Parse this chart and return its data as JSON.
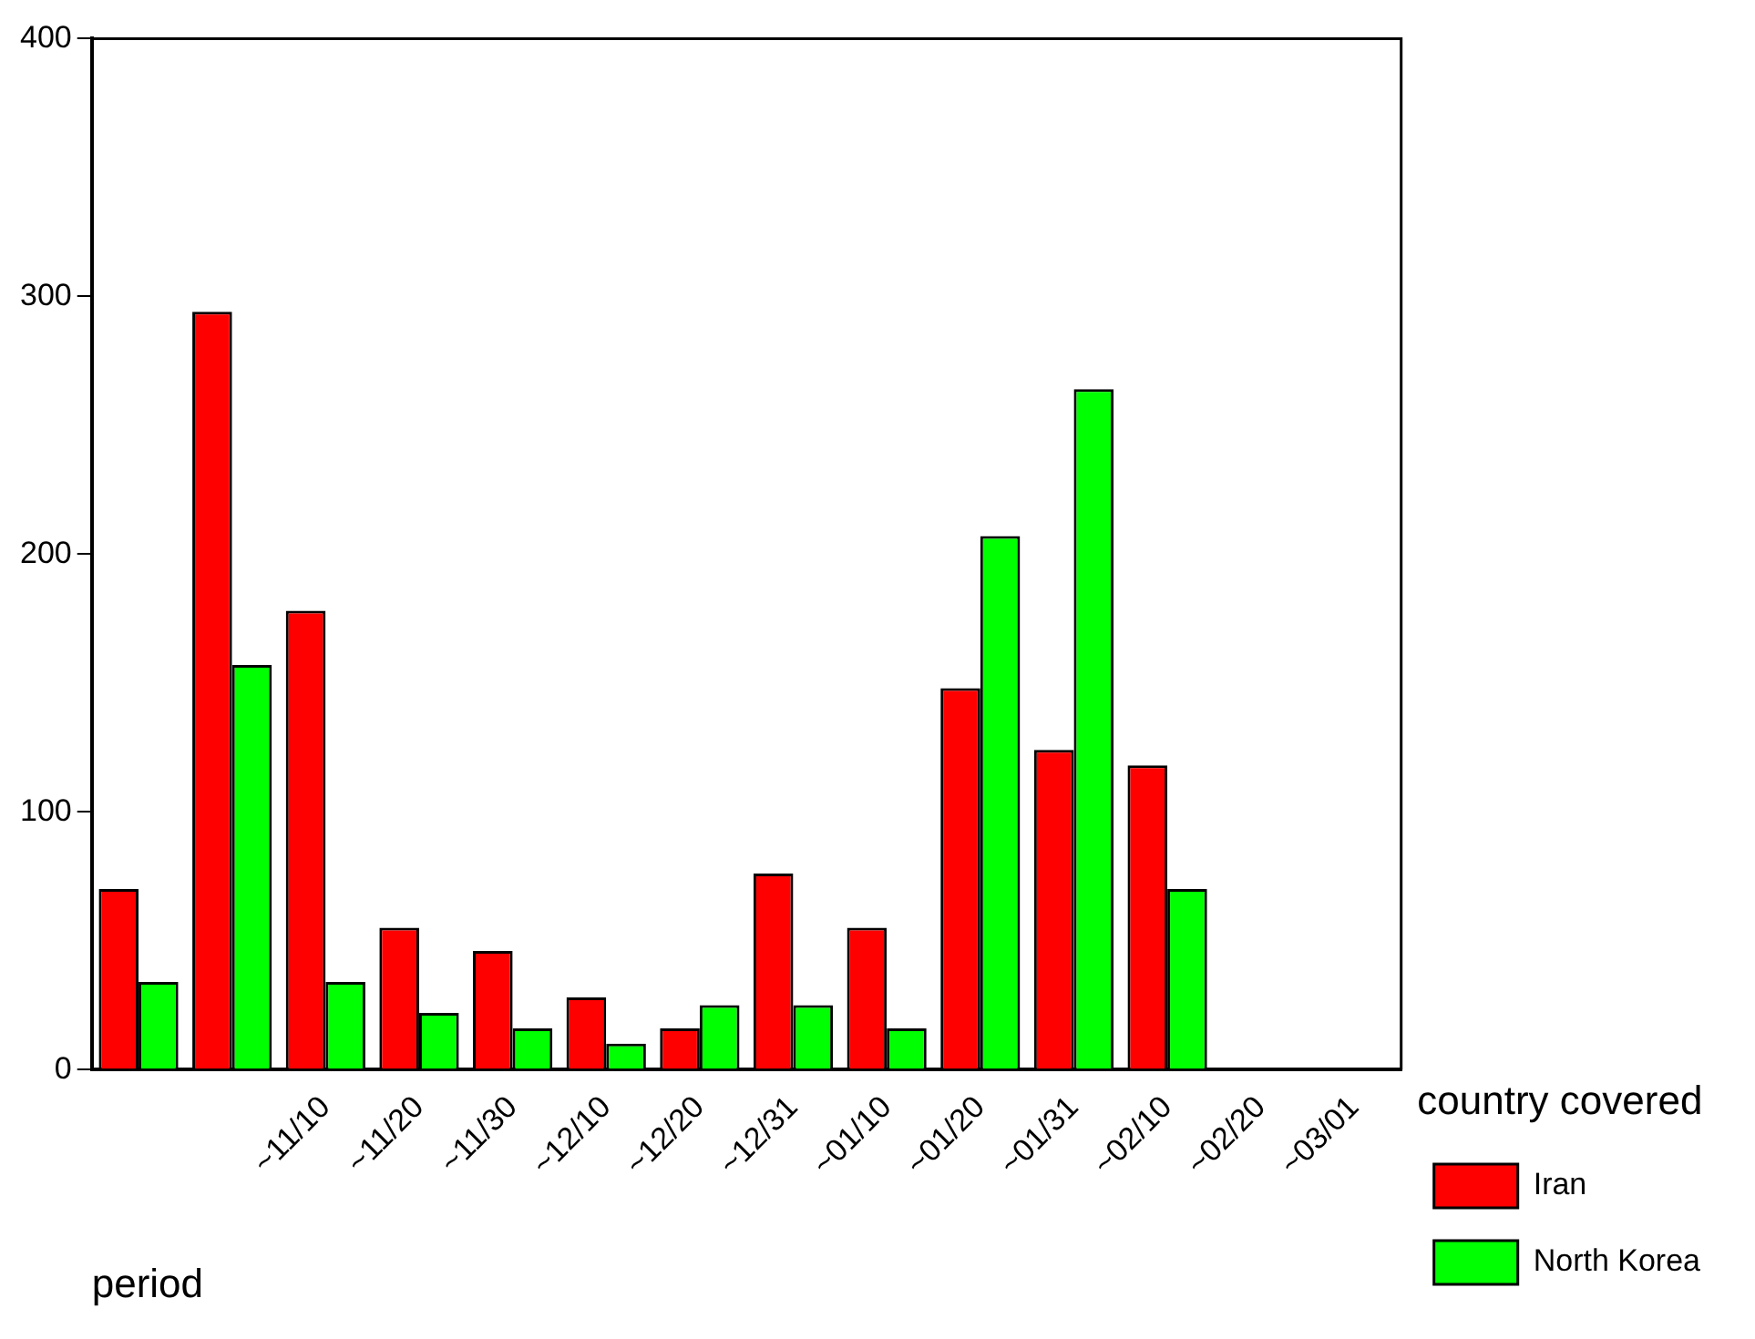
{
  "chart_data": {
    "type": "bar",
    "xlabel": "period",
    "legend_title": "country covered",
    "categories": [
      null,
      null,
      "~11/10",
      "~11/20",
      "~11/30",
      "~12/10",
      "~12/20",
      "~12/31",
      "~01/10",
      "~01/20",
      "~01/31",
      "~02/10",
      "~02/20",
      "~03/01"
    ],
    "series": [
      {
        "name": "Iran",
        "color": "#ff0000",
        "values": [
          70,
          294,
          178,
          55,
          46,
          28,
          16,
          76,
          55,
          148,
          124,
          118,
          null,
          null
        ]
      },
      {
        "name": "North Korea",
        "color": "#00ff00",
        "values": [
          34,
          157,
          34,
          22,
          16,
          10,
          25,
          25,
          16,
          207,
          264,
          70,
          null,
          null
        ]
      }
    ],
    "ylim": [
      0,
      400
    ],
    "yticks": [
      0,
      100,
      200,
      300,
      400
    ],
    "grid": false,
    "legend": "right"
  }
}
